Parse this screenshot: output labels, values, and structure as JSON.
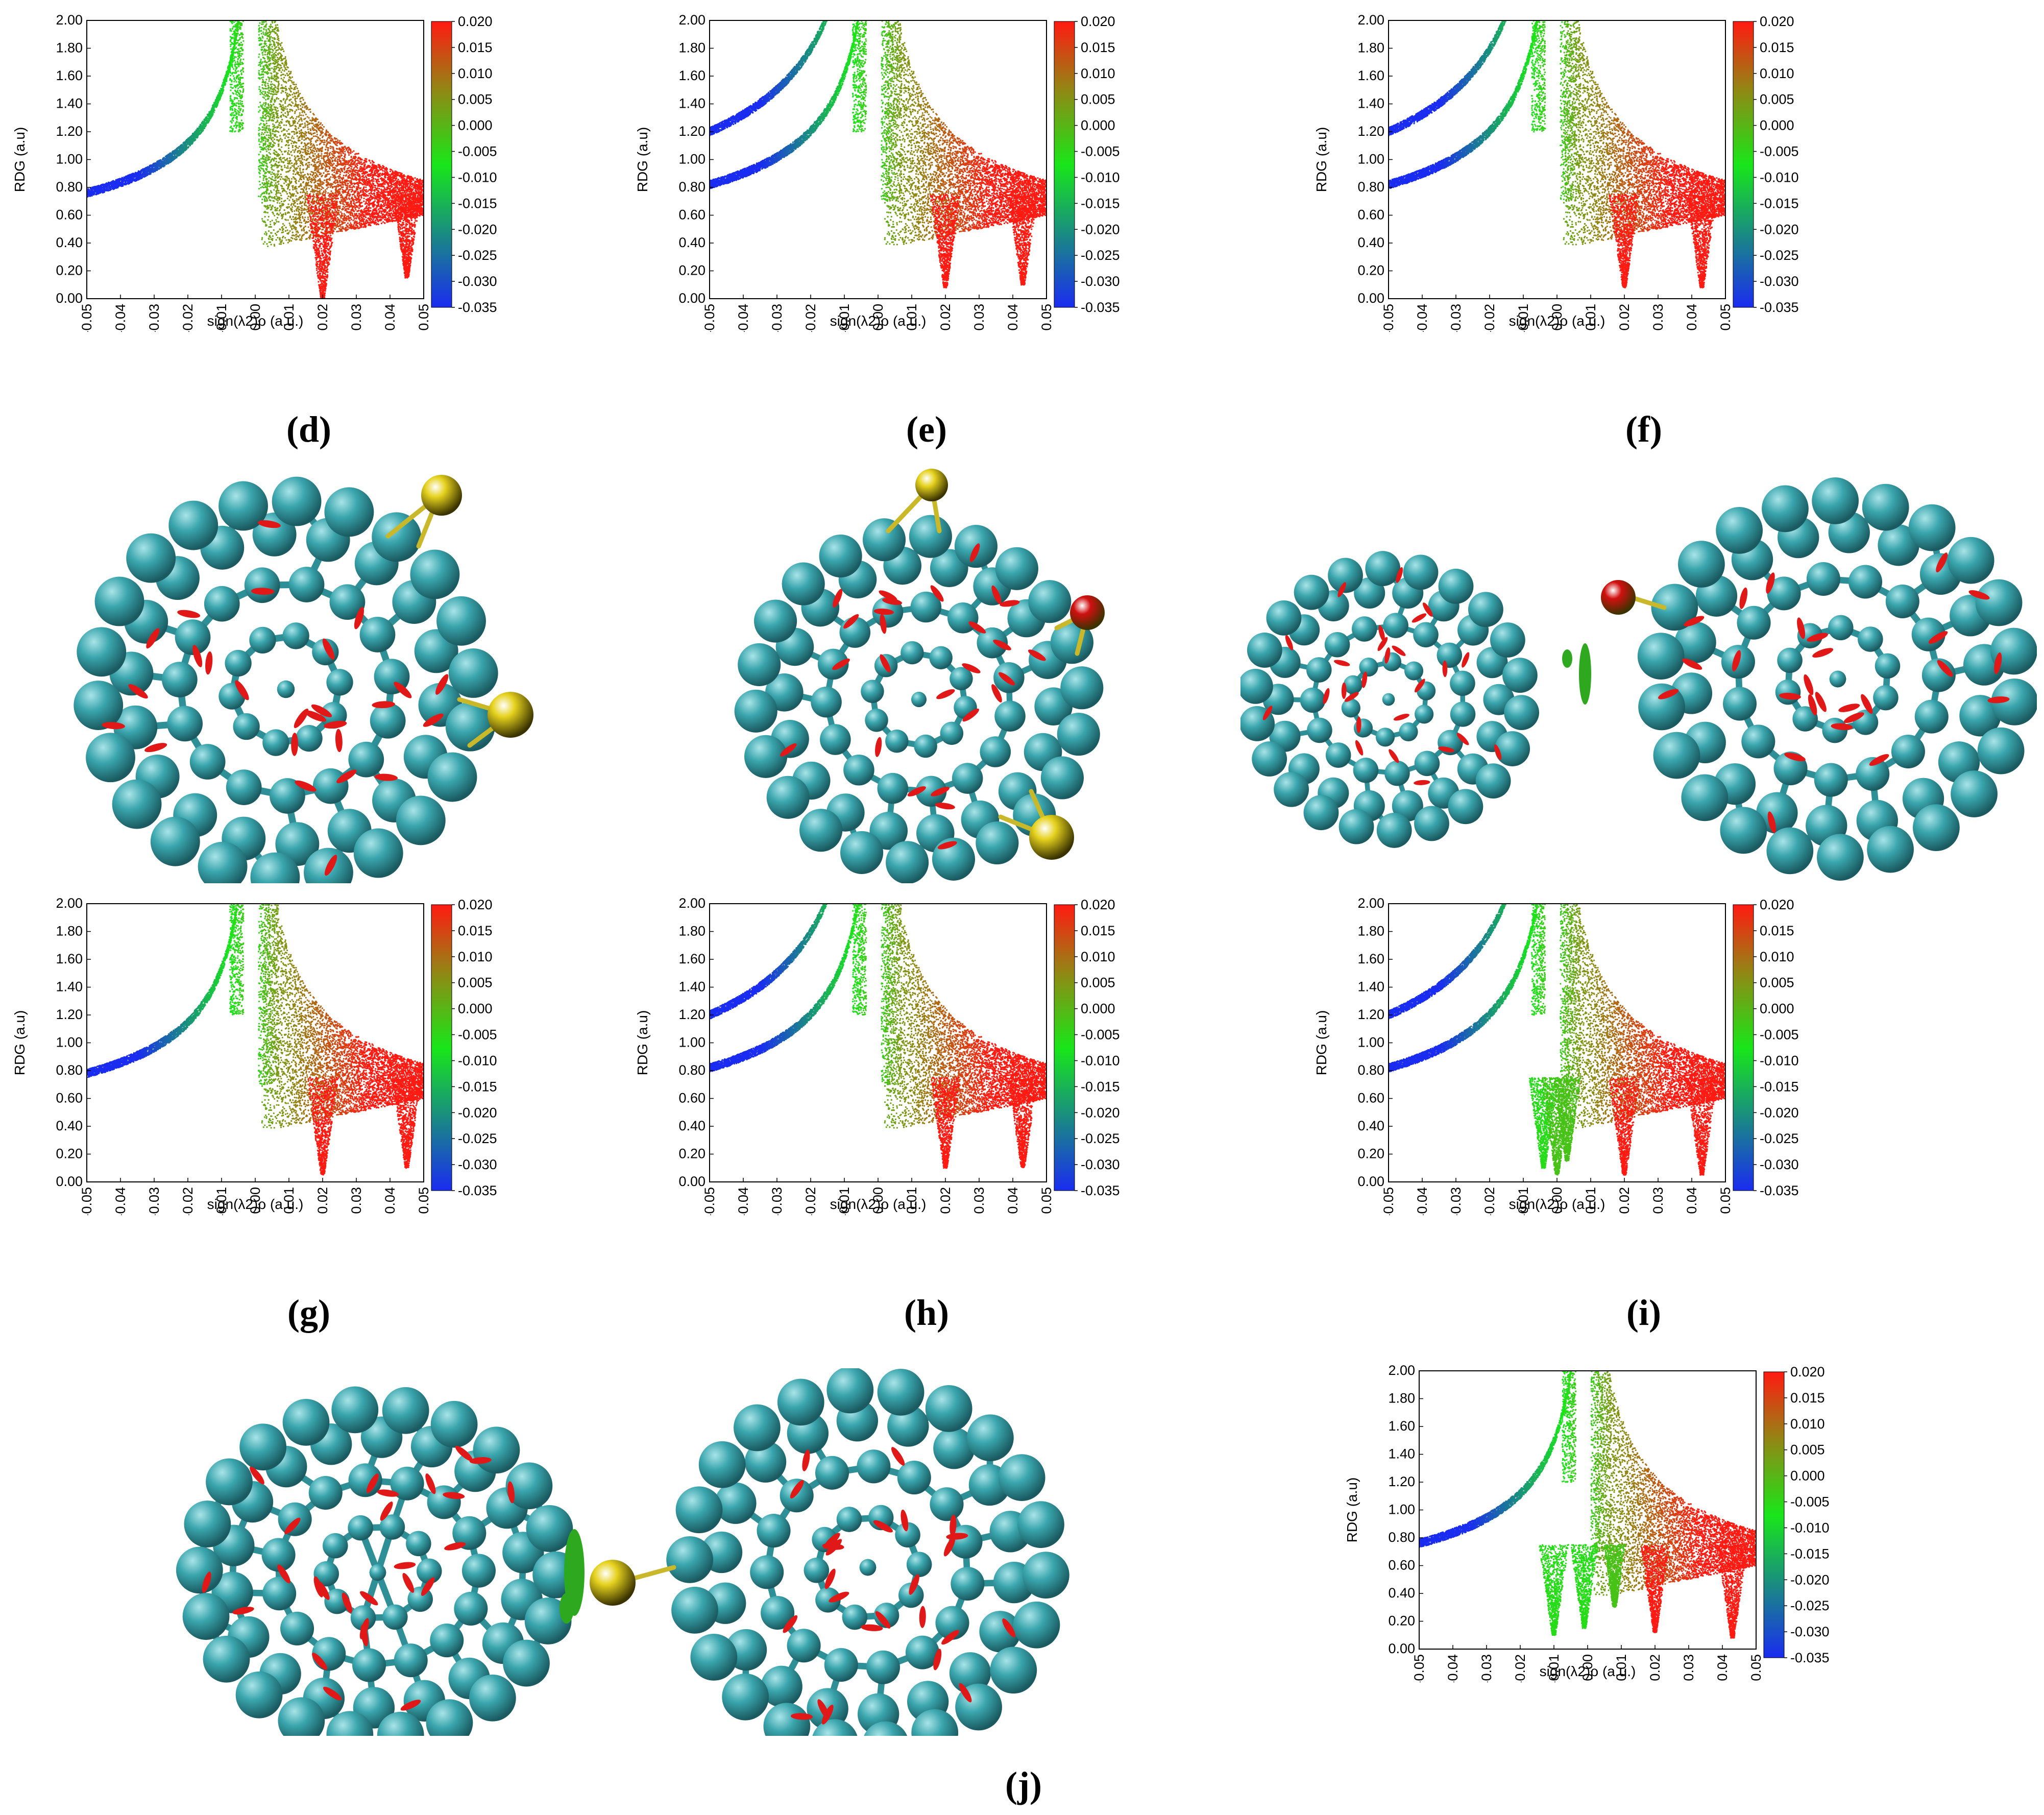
{
  "panel_labels": {
    "d": "(d)",
    "e": "(e)",
    "f": "(f)",
    "g": "(g)",
    "h": "(h)",
    "i": "(i)",
    "j": "(j)"
  },
  "colors": {
    "carbon": "#3aa5ad",
    "sulfur": "#e6d21e",
    "oxygen": "#d01010",
    "isosurface_red": "#e01818",
    "isosurface_green": "#2ea81e",
    "scatter_blue": "#1a2cf0",
    "scatter_green": "#19e619",
    "scatter_red": "#ff1a12"
  },
  "icons": {
    "molecule_image": "fullerene-nci-isosurface"
  },
  "chart_data": [
    {
      "panel": "d",
      "type": "scatter",
      "xlabel": "sign(λ2)ρ (a.u.)",
      "ylabel": "RDG (a.u)",
      "xlim": [
        -0.05,
        0.05
      ],
      "ylim": [
        0,
        2
      ],
      "xticks": [
        "-0.05",
        "-0.04",
        "-0.03",
        "-0.02",
        "-0.01",
        "0.00",
        "0.01",
        "0.02",
        "0.03",
        "0.04",
        "0.05"
      ],
      "yticks": [
        "0.00",
        "0.20",
        "0.40",
        "0.60",
        "0.80",
        "1.00",
        "1.20",
        "1.40",
        "1.60",
        "1.80",
        "2.00"
      ],
      "colorbar": {
        "min": -0.035,
        "max": 0.02,
        "ticks": [
          "0.020",
          "0.015",
          "0.010",
          "0.005",
          "0.000",
          "-0.005",
          "-0.010",
          "-0.015",
          "-0.020",
          "-0.025",
          "-0.030",
          "-0.035"
        ]
      },
      "branches": [
        {
          "side": "neg",
          "at_x_0_05": 0.76,
          "width": 0.06
        }
      ],
      "spikes": [
        {
          "x": 0.02,
          "min_y": 0.0,
          "color": "red"
        },
        {
          "x": 0.045,
          "min_y": 0.15,
          "color": "red"
        }
      ]
    },
    {
      "panel": "e",
      "type": "scatter",
      "xlabel": "sign(λ2)ρ (a.u.)",
      "ylabel": "RDG (a.u)",
      "xlim": [
        -0.05,
        0.05
      ],
      "ylim": [
        0,
        2
      ],
      "xticks": [
        "-0.05",
        "-0.04",
        "-0.03",
        "-0.02",
        "-0.01",
        "0.00",
        "0.01",
        "0.02",
        "0.03",
        "0.04",
        "0.05"
      ],
      "yticks": [
        "0.00",
        "0.20",
        "0.40",
        "0.60",
        "0.80",
        "1.00",
        "1.20",
        "1.40",
        "1.60",
        "1.80",
        "2.00"
      ],
      "colorbar": {
        "min": -0.035,
        "max": 0.02,
        "ticks": [
          "0.020",
          "0.015",
          "0.010",
          "0.005",
          "0.000",
          "-0.005",
          "-0.010",
          "-0.015",
          "-0.020",
          "-0.025",
          "-0.030",
          "-0.035"
        ]
      },
      "branches": [
        {
          "side": "neg",
          "at_x_0_05": 0.82,
          "width": 0.06
        },
        {
          "side": "neg",
          "at_x_0_05": 1.2,
          "width": 0.06
        }
      ],
      "spikes": [
        {
          "x": 0.02,
          "min_y": 0.08,
          "color": "red"
        },
        {
          "x": 0.043,
          "min_y": 0.1,
          "color": "red"
        }
      ]
    },
    {
      "panel": "f",
      "type": "scatter",
      "xlabel": "sign(λ2)ρ (a.u.)",
      "ylabel": "RDG (a.u)",
      "xlim": [
        -0.05,
        0.05
      ],
      "ylim": [
        0,
        2
      ],
      "xticks": [
        "-0.05",
        "-0.04",
        "-0.03",
        "-0.02",
        "-0.01",
        "0.00",
        "0.01",
        "0.02",
        "0.03",
        "0.04",
        "0.05"
      ],
      "yticks": [
        "0.00",
        "0.20",
        "0.40",
        "0.60",
        "0.80",
        "1.00",
        "1.20",
        "1.40",
        "1.60",
        "1.80",
        "2.00"
      ],
      "colorbar": {
        "min": -0.035,
        "max": 0.02,
        "ticks": [
          "0.020",
          "0.015",
          "0.010",
          "0.005",
          "0.000",
          "-0.005",
          "-0.010",
          "-0.015",
          "-0.020",
          "-0.025",
          "-0.030",
          "-0.035"
        ]
      },
      "branches": [
        {
          "side": "neg",
          "at_x_0_05": 0.82,
          "width": 0.06
        },
        {
          "side": "neg",
          "at_x_0_05": 1.2,
          "width": 0.06
        }
      ],
      "spikes": [
        {
          "x": 0.02,
          "min_y": 0.08,
          "color": "red"
        },
        {
          "x": 0.043,
          "min_y": 0.08,
          "color": "red"
        }
      ]
    },
    {
      "panel": "g",
      "type": "scatter",
      "xlabel": "sign(λ2)ρ (a.u.)",
      "ylabel": "RDG (a.u)",
      "xlim": [
        -0.05,
        0.05
      ],
      "ylim": [
        0,
        2
      ],
      "xticks": [
        "-0.05",
        "-0.04",
        "-0.03",
        "-0.02",
        "-0.01",
        "0.00",
        "0.01",
        "0.02",
        "0.03",
        "0.04",
        "0.05"
      ],
      "yticks": [
        "0.00",
        "0.20",
        "0.40",
        "0.60",
        "0.80",
        "1.00",
        "1.20",
        "1.40",
        "1.60",
        "1.80",
        "2.00"
      ],
      "colorbar": {
        "min": -0.035,
        "max": 0.02,
        "ticks": [
          "0.020",
          "0.015",
          "0.010",
          "0.005",
          "0.000",
          "-0.005",
          "-0.010",
          "-0.015",
          "-0.020",
          "-0.025",
          "-0.030",
          "-0.035"
        ]
      },
      "branches": [
        {
          "side": "neg",
          "at_x_0_05": 0.78,
          "width": 0.06
        }
      ],
      "spikes": [
        {
          "x": 0.02,
          "min_y": 0.05,
          "color": "red"
        },
        {
          "x": 0.045,
          "min_y": 0.1,
          "color": "red"
        }
      ]
    },
    {
      "panel": "h",
      "type": "scatter",
      "xlabel": "sign(λ2)ρ (a.u.)",
      "ylabel": "RDG (a.u)",
      "xlim": [
        -0.05,
        0.05
      ],
      "ylim": [
        0,
        2
      ],
      "xticks": [
        "-0.05",
        "-0.04",
        "-0.03",
        "-0.02",
        "-0.01",
        "0.00",
        "0.01",
        "0.02",
        "0.03",
        "0.04",
        "0.05"
      ],
      "yticks": [
        "0.00",
        "0.20",
        "0.40",
        "0.60",
        "0.80",
        "1.00",
        "1.20",
        "1.40",
        "1.60",
        "1.80",
        "2.00"
      ],
      "colorbar": {
        "min": -0.035,
        "max": 0.02,
        "ticks": [
          "0.020",
          "0.015",
          "0.010",
          "0.005",
          "0.000",
          "-0.005",
          "-0.010",
          "-0.015",
          "-0.020",
          "-0.025",
          "-0.030",
          "-0.035"
        ]
      },
      "branches": [
        {
          "side": "neg",
          "at_x_0_05": 0.82,
          "width": 0.06
        },
        {
          "side": "neg",
          "at_x_0_05": 1.2,
          "width": 0.06
        }
      ],
      "spikes": [
        {
          "x": 0.02,
          "min_y": 0.1,
          "color": "red"
        },
        {
          "x": 0.043,
          "min_y": 0.1,
          "color": "red"
        }
      ]
    },
    {
      "panel": "i",
      "type": "scatter",
      "xlabel": "sign(λ2)ρ (a.u.)",
      "ylabel": "RDG (a.u)",
      "xlim": [
        -0.05,
        0.05
      ],
      "ylim": [
        0,
        2
      ],
      "xticks": [
        "-0.05",
        "-0.04",
        "-0.03",
        "-0.02",
        "-0.01",
        "0.00",
        "0.01",
        "0.02",
        "0.03",
        "0.04",
        "0.05"
      ],
      "yticks": [
        "0.00",
        "0.20",
        "0.40",
        "0.60",
        "0.80",
        "1.00",
        "1.20",
        "1.40",
        "1.60",
        "1.80",
        "2.00"
      ],
      "colorbar": {
        "min": -0.035,
        "max": 0.02,
        "ticks": [
          "0.020",
          "0.015",
          "0.010",
          "0.005",
          "0.000",
          "-0.005",
          "-0.010",
          "-0.015",
          "-0.020",
          "-0.025",
          "-0.030",
          "-0.035"
        ]
      },
      "branches": [
        {
          "side": "neg",
          "at_x_0_05": 0.82,
          "width": 0.06
        },
        {
          "side": "neg",
          "at_x_0_05": 1.2,
          "width": 0.06
        }
      ],
      "spikes": [
        {
          "x": -0.004,
          "min_y": 0.1,
          "color": "green"
        },
        {
          "x": 0.0,
          "min_y": 0.05,
          "color": "green"
        },
        {
          "x": 0.003,
          "min_y": 0.15,
          "color": "green"
        },
        {
          "x": 0.02,
          "min_y": 0.05,
          "color": "red"
        },
        {
          "x": 0.043,
          "min_y": 0.05,
          "color": "red"
        }
      ]
    },
    {
      "panel": "j",
      "type": "scatter",
      "xlabel": "sign(λ2)ρ (a.u.)",
      "ylabel": "RDG (a.u)",
      "xlim": [
        -0.05,
        0.05
      ],
      "ylim": [
        0,
        2
      ],
      "xticks": [
        "-0.05",
        "-0.04",
        "-0.03",
        "-0.02",
        "-0.01",
        "0.00",
        "0.01",
        "0.02",
        "0.03",
        "0.04",
        "0.05"
      ],
      "yticks": [
        "0.00",
        "0.20",
        "0.40",
        "0.60",
        "0.80",
        "1.00",
        "1.20",
        "1.40",
        "1.60",
        "1.80",
        "2.00"
      ],
      "colorbar": {
        "min": -0.035,
        "max": 0.02,
        "ticks": [
          "0.020",
          "0.015",
          "0.010",
          "0.005",
          "0.000",
          "-0.005",
          "-0.010",
          "-0.015",
          "-0.020",
          "-0.025",
          "-0.030",
          "-0.035"
        ]
      },
      "branches": [
        {
          "side": "neg",
          "at_x_0_05": 0.76,
          "width": 0.06
        }
      ],
      "spikes": [
        {
          "x": -0.01,
          "min_y": 0.1,
          "color": "green"
        },
        {
          "x": -0.001,
          "min_y": 0.15,
          "color": "green"
        },
        {
          "x": 0.008,
          "min_y": 0.3,
          "color": "green"
        },
        {
          "x": 0.02,
          "min_y": 0.12,
          "color": "red"
        },
        {
          "x": 0.043,
          "min_y": 0.08,
          "color": "red"
        }
      ]
    }
  ]
}
